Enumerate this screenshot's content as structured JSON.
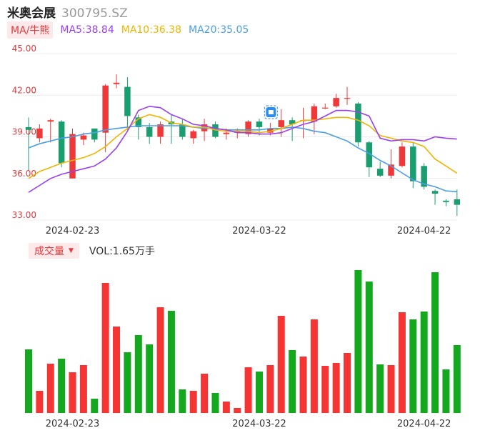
{
  "header": {
    "name": "米奥会展",
    "code": "300795.SZ"
  },
  "ma_legend": {
    "toggle_label": "MA/牛熊",
    "ma5": "MA5:38.84",
    "ma10": "MA10:36.38",
    "ma20": "MA20:35.05",
    "colors": {
      "ma5": "#9b3ff0",
      "ma10": "#f0b400",
      "ma20": "#4a9ee8"
    }
  },
  "volume_panel": {
    "toggle_label": "成交量",
    "vol_label": "VOL:1.65万手"
  },
  "colors": {
    "up": "#f03838",
    "down": "#1a9e6f",
    "vol_up": "#f53434",
    "vol_down": "#14a81e"
  },
  "chart_data": {
    "type": "candlestick",
    "y_ticks": [
      "45.00",
      "42.00",
      "39.00",
      "36.00",
      "33.00"
    ],
    "ylim": [
      33.0,
      45.0
    ],
    "x_tick_labels": [
      {
        "label": "2024-02-23",
        "index": 4
      },
      {
        "label": "2024-03-22",
        "index": 21
      },
      {
        "label": "2024-04-22",
        "index": 36
      }
    ],
    "candles": [
      [
        39.7,
        39.5,
        40.4,
        36.6
      ],
      [
        38.9,
        39.6,
        39.9,
        38.6
      ],
      [
        40.1,
        40.2,
        40.3,
        38.6
      ],
      [
        40.1,
        37.1,
        40.2,
        36.8
      ],
      [
        36.0,
        39.2,
        39.6,
        36.0
      ],
      [
        38.8,
        39.1,
        39.3,
        38.4
      ],
      [
        39.6,
        38.8,
        39.6,
        38.6
      ],
      [
        39.3,
        42.7,
        42.8,
        37.9
      ],
      [
        42.8,
        42.9,
        43.5,
        42.5
      ],
      [
        42.6,
        40.5,
        43.3,
        39.5
      ],
      [
        40.4,
        39.7,
        40.6,
        38.8
      ],
      [
        39.7,
        39.0,
        40.0,
        38.5
      ],
      [
        39.0,
        39.9,
        40.1,
        38.5
      ],
      [
        40.1,
        39.9,
        40.6,
        38.5
      ],
      [
        39.9,
        39.0,
        40.3,
        38.8
      ],
      [
        38.9,
        39.4,
        39.5,
        38.5
      ],
      [
        39.4,
        39.9,
        40.3,
        38.7
      ],
      [
        39.9,
        39.0,
        40.1,
        38.9
      ],
      [
        39.2,
        39.3,
        39.6,
        38.8
      ],
      [
        39.3,
        39.4,
        39.6,
        38.9
      ],
      [
        39.2,
        40.1,
        40.2,
        39.0
      ],
      [
        40.1,
        39.7,
        40.3,
        39.1
      ],
      [
        39.3,
        39.6,
        40.0,
        39.1
      ],
      [
        39.7,
        40.2,
        41.0,
        39.0
      ],
      [
        40.2,
        39.9,
        40.4,
        38.7
      ],
      [
        40.2,
        40.2,
        41.1,
        38.9
      ],
      [
        40.1,
        41.2,
        41.4,
        39.2
      ],
      [
        41.1,
        41.1,
        41.4,
        41.0
      ],
      [
        41.2,
        41.8,
        42.1,
        41.1
      ],
      [
        41.8,
        41.8,
        42.6,
        41.3
      ],
      [
        41.4,
        38.6,
        41.5,
        38.3
      ],
      [
        38.6,
        36.8,
        38.7,
        36.1
      ],
      [
        36.7,
        36.2,
        37.2,
        36.1
      ],
      [
        36.2,
        37.0,
        38.1,
        36.0
      ],
      [
        36.9,
        38.3,
        38.6,
        36.8
      ],
      [
        38.3,
        35.8,
        38.6,
        35.3
      ],
      [
        36.9,
        35.4,
        37.1,
        35.2
      ],
      [
        35.1,
        34.9,
        35.2,
        34.1
      ],
      [
        34.4,
        34.3,
        34.5,
        34.0
      ],
      [
        34.5,
        34.1,
        35.2,
        33.3
      ]
    ],
    "volumes": [
      89,
      31,
      69,
      76,
      57,
      67,
      20,
      182,
      121,
      85,
      109,
      96,
      148,
      143,
      33,
      31,
      55,
      28,
      16,
      7,
      64,
      58,
      67,
      136,
      88,
      79,
      131,
      66,
      70,
      84,
      200,
      184,
      68,
      67,
      141,
      131,
      142,
      197,
      61,
      95
    ],
    "ma5": [
      35.0,
      35.5,
      36.0,
      36.3,
      36.5,
      36.7,
      36.9,
      37.4,
      38.2,
      39.4,
      40.9,
      41.2,
      41.1,
      40.6,
      40.3,
      39.9,
      39.8,
      39.6,
      39.5,
      39.3,
      39.3,
      39.2,
      39.2,
      39.3,
      39.6,
      39.9,
      40.1,
      40.5,
      40.9,
      40.9,
      40.8,
      40.5,
      38.9,
      38.7,
      38.8,
      38.8,
      38.7,
      39.0,
      38.9,
      38.84
    ],
    "ma10": [
      36.0,
      36.5,
      36.8,
      37.1,
      37.3,
      37.5,
      37.8,
      38.3,
      39.0,
      39.6,
      40.3,
      40.6,
      40.4,
      40.0,
      39.9,
      39.7,
      39.7,
      39.5,
      39.4,
      39.4,
      39.4,
      39.3,
      39.4,
      39.6,
      39.9,
      40.2,
      40.2,
      40.3,
      40.4,
      40.4,
      40.2,
      39.8,
      39.1,
      38.9,
      38.7,
      38.6,
      38.3,
      37.4,
      36.9,
      36.38
    ],
    "ma20": [
      38.2,
      38.5,
      38.7,
      38.9,
      39.0,
      39.2,
      39.3,
      39.5,
      39.6,
      39.7,
      39.8,
      39.8,
      39.8,
      39.8,
      39.8,
      39.7,
      39.6,
      39.6,
      39.5,
      39.5,
      39.5,
      39.5,
      39.6,
      39.6,
      39.7,
      39.6,
      39.4,
      39.3,
      39.0,
      38.7,
      38.2,
      37.8,
      37.3,
      36.9,
      36.4,
      35.9,
      35.6,
      35.4,
      35.1,
      35.05
    ]
  }
}
